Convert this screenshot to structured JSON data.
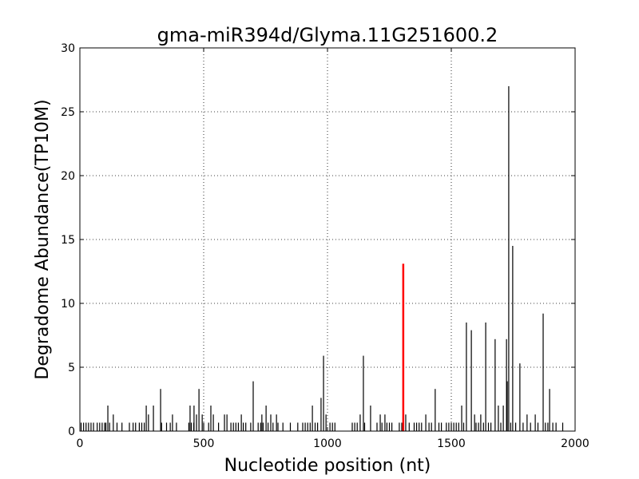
{
  "chart_data": {
    "type": "stem",
    "title": "gma-miR394d/Glyma.11G251600.2",
    "x_label": "Nucleotide position (nt)",
    "y_label": "Degradome Abundance(TP10M)",
    "xlim": [
      0,
      2000
    ],
    "xticks": [
      0,
      500,
      1000,
      1500,
      2000
    ],
    "ylim": [
      0,
      30
    ],
    "yticks": [
      0,
      5,
      10,
      15,
      20,
      25,
      30
    ],
    "grid": true,
    "series": [
      {
        "color": "#000000",
        "x": [
          113,
          135,
          268,
          277,
          297,
          326,
          374,
          445,
          461,
          471,
          481,
          494,
          529,
          539,
          584,
          594,
          652,
          700,
          735,
          752,
          771,
          794,
          939,
          974,
          984,
          994,
          1132,
          1145,
          1174,
          1213,
          1232,
          1316,
          1397,
          1435,
          1542,
          1561,
          1581,
          1594,
          1619,
          1639,
          1677,
          1690,
          1710,
          1723,
          1726,
          1732,
          1748,
          1777,
          1806,
          1839,
          1871,
          1897,
          1923,
          5,
          15,
          25,
          35,
          45,
          55,
          70,
          80,
          90,
          100,
          105,
          120,
          150,
          170,
          200,
          215,
          225,
          240,
          250,
          260,
          330,
          350,
          365,
          390,
          440,
          450,
          460,
          500,
          520,
          560,
          610,
          620,
          630,
          640,
          660,
          670,
          690,
          720,
          730,
          740,
          760,
          780,
          800,
          820,
          850,
          880,
          900,
          910,
          920,
          930,
          950,
          960,
          1010,
          1020,
          1030,
          1100,
          1110,
          1120,
          1150,
          1200,
          1220,
          1240,
          1250,
          1260,
          1290,
          1300,
          1330,
          1350,
          1360,
          1370,
          1380,
          1410,
          1420,
          1450,
          1460,
          1480,
          1490,
          1500,
          1510,
          1520,
          1530,
          1550,
          1600,
          1610,
          1630,
          1650,
          1660,
          1700,
          1740,
          1760,
          1790,
          1820,
          1850,
          1880,
          1890,
          1910,
          1950
        ],
        "values": [
          2.0,
          1.3,
          2.0,
          1.3,
          2.0,
          3.3,
          1.3,
          2.0,
          2.0,
          1.3,
          3.3,
          1.3,
          2.0,
          1.3,
          1.3,
          1.3,
          1.3,
          3.9,
          1.3,
          2.0,
          1.3,
          1.3,
          2.0,
          2.6,
          5.9,
          1.3,
          1.3,
          5.9,
          2.0,
          1.3,
          1.3,
          1.3,
          1.3,
          3.3,
          2.0,
          8.5,
          7.9,
          1.3,
          1.3,
          8.5,
          7.2,
          2.0,
          2.0,
          7.2,
          3.9,
          27.0,
          14.5,
          5.3,
          1.3,
          1.3,
          9.2,
          3.3,
          0.66,
          0.66,
          0.66,
          0.66,
          0.66,
          0.66,
          0.66,
          0.66,
          0.66,
          0.66,
          0.66,
          0.66,
          0.66,
          0.66,
          0.66,
          0.66,
          0.66,
          0.66,
          0.66,
          0.66,
          0.66,
          0.66,
          0.66,
          0.66,
          0.66,
          0.66,
          0.66,
          0.66,
          0.66,
          0.66,
          0.66,
          0.66,
          0.66,
          0.66,
          0.66,
          0.66,
          0.66,
          0.66,
          0.66,
          0.66,
          0.66,
          0.66,
          0.66,
          0.66,
          0.66,
          0.66,
          0.66,
          0.66,
          0.66,
          0.66,
          0.66,
          0.66,
          0.66,
          0.66,
          0.66,
          0.66,
          0.66,
          0.66,
          0.66,
          0.66,
          0.66,
          0.66,
          0.66,
          0.66,
          0.66,
          0.66,
          0.66,
          0.66,
          0.66,
          0.66,
          0.66,
          0.66,
          0.66,
          0.66,
          0.66,
          0.66,
          0.66,
          0.66,
          0.66,
          0.66,
          0.66,
          0.66,
          0.66,
          0.66,
          0.66,
          0.66,
          0.66,
          0.66,
          0.66,
          0.66,
          0.66,
          0.66,
          0.66,
          0.66,
          0.66,
          0.66,
          0.66,
          0.66
        ]
      },
      {
        "color": "#ff0000",
        "x": [
          1306
        ],
        "values": [
          13.1
        ]
      }
    ]
  }
}
